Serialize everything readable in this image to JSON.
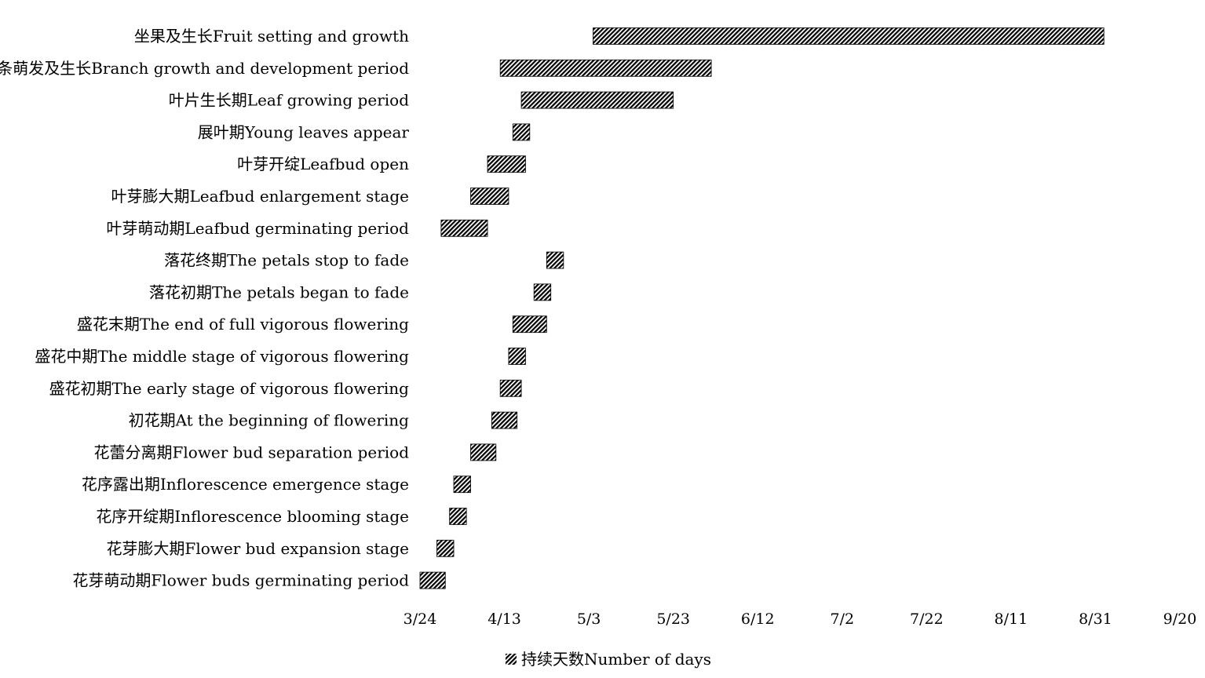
{
  "chart_data": {
    "type": "bar",
    "orientation": "horizontal-gantt",
    "x_ticks": [
      "3/24",
      "4/13",
      "5/3",
      "5/23",
      "6/12",
      "7/2",
      "7/22",
      "8/11",
      "8/31",
      "9/20"
    ],
    "xlim": [
      "3/24",
      "9/20"
    ],
    "legend": {
      "label": "持续天数Number of days",
      "position": "bottom-center"
    },
    "grid": false,
    "series": [
      {
        "name": "持续天数Number of days",
        "tasks": [
          {
            "label": "坐果及生长Fruit setting and growth",
            "start": "5/4",
            "end": "9/2"
          },
          {
            "label": "枝条萌发及生长Branch growth and development period",
            "start": "4/12",
            "end": "6/1"
          },
          {
            "label": "叶片生长期Leaf growing period",
            "start": "4/17",
            "end": "5/23"
          },
          {
            "label": "展叶期Young leaves appear",
            "start": "4/15",
            "end": "4/19"
          },
          {
            "label": "叶芽开绽Leafbud open",
            "start": "4/9",
            "end": "4/18"
          },
          {
            "label": "叶芽膨大期Leafbud enlargement stage",
            "start": "4/5",
            "end": "4/14"
          },
          {
            "label": "叶芽萌动期Leafbud germinating period",
            "start": "3/29",
            "end": "4/9"
          },
          {
            "label": "落花终期The petals stop to fade",
            "start": "4/23",
            "end": "4/27"
          },
          {
            "label": "落花初期The petals began to fade",
            "start": "4/20",
            "end": "4/24"
          },
          {
            "label": "盛花末期The end of full vigorous flowering",
            "start": "4/15",
            "end": "4/23"
          },
          {
            "label": "盛花中期The middle stage of vigorous flowering",
            "start": "4/14",
            "end": "4/18"
          },
          {
            "label": "盛花初期The early stage of vigorous flowering",
            "start": "4/12",
            "end": "4/17"
          },
          {
            "label": "初花期At the beginning of flowering",
            "start": "4/10",
            "end": "4/16"
          },
          {
            "label": "花蕾分离期Flower bud separation period",
            "start": "4/5",
            "end": "4/11"
          },
          {
            "label": "花序露出期Inflorescence emergence stage",
            "start": "4/1",
            "end": "4/5"
          },
          {
            "label": "花序开绽期Inflorescence blooming stage",
            "start": "3/31",
            "end": "4/4"
          },
          {
            "label": "花芽膨大期Flower bud expansion stage",
            "start": "3/28",
            "end": "4/1"
          },
          {
            "label": "花芽萌动期Flower buds germinating period",
            "start": "3/24",
            "end": "3/30"
          }
        ]
      }
    ]
  }
}
